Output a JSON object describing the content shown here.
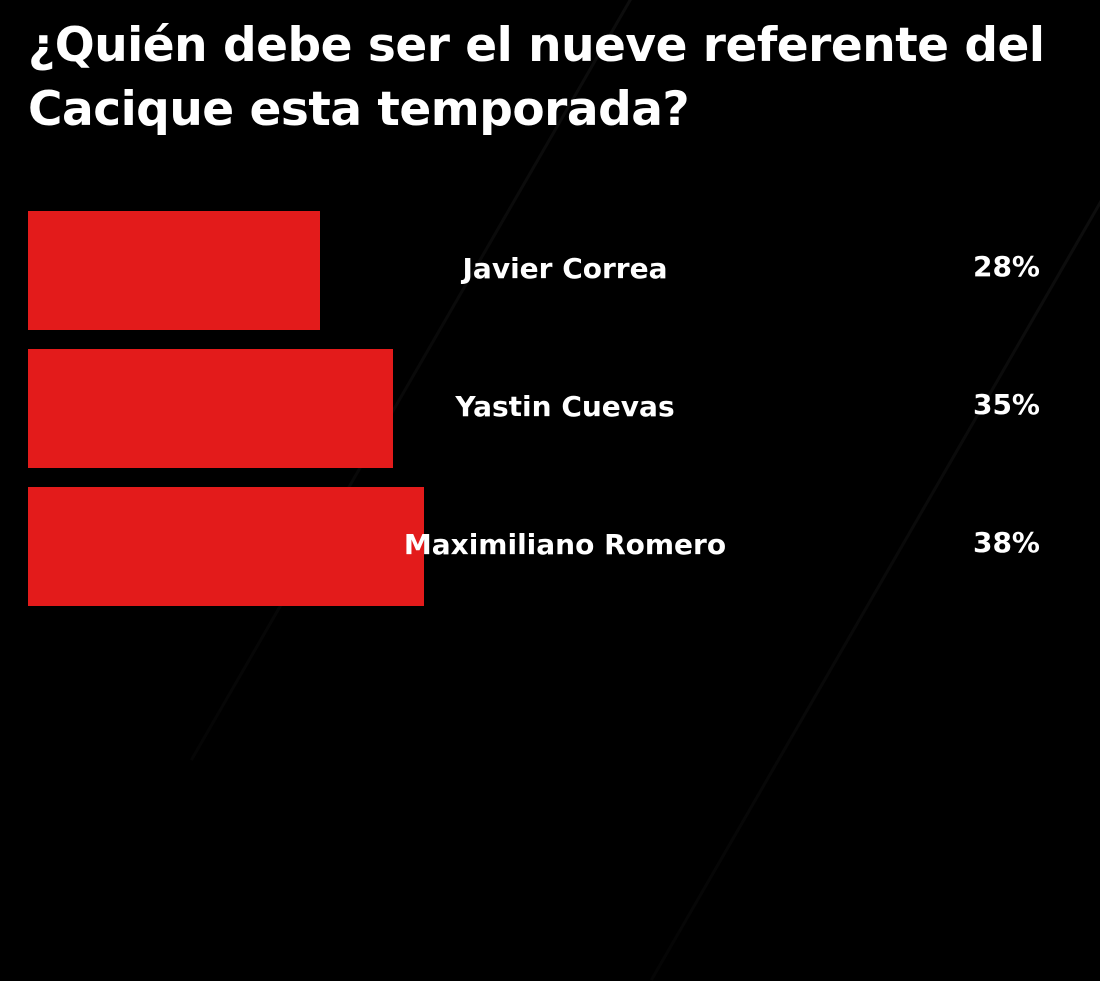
{
  "chart_data": {
    "type": "bar",
    "orientation": "horizontal",
    "title": "¿Quién debe ser el nueve referente del Cacique esta temporada?",
    "categories": [
      "Javier Correa",
      "Yastin Cuevas",
      "Maximiliano Romero"
    ],
    "values": [
      28,
      35,
      38
    ],
    "value_labels": [
      "28%",
      "35%",
      "38%"
    ],
    "xlim": [
      0,
      100
    ],
    "grid": false,
    "colors": {
      "bar": "#e31b1b",
      "background": "#000000",
      "text": "#ffffff"
    }
  }
}
